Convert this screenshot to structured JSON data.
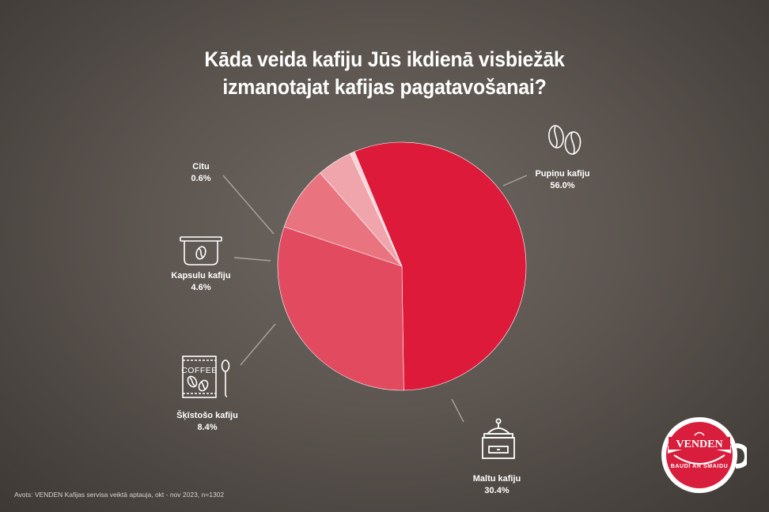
{
  "title_lines": [
    "Kāda veida kafiju Jūs ikdienā visbiežāk",
    "izmanotajat kafijas pagatavošanai?"
  ],
  "chart_data": {
    "type": "pie",
    "title": "Kāda veida kafiju Jūs ikdienā visbiežāk izmanotajat kafijas pagatavošanai?",
    "slices": [
      {
        "label": "Pupiņu kafiju",
        "value": 56.0,
        "value_label": "56.0%",
        "color": "#de1a3b"
      },
      {
        "label": "Maltu kafiju",
        "value": 30.4,
        "value_label": "30.4%",
        "color": "#e24a5f"
      },
      {
        "label": "Šķīstošo kafiju",
        "value": 8.4,
        "value_label": "8.4%",
        "color": "#e9737f"
      },
      {
        "label": "Kapsulu kafiju",
        "value": 4.6,
        "value_label": "4.6%",
        "color": "#f0a5ad"
      },
      {
        "label": "Citu",
        "value": 0.6,
        "value_label": "0.6%",
        "color": "#f7d4d8"
      }
    ],
    "legend": "none"
  },
  "source": "Avots: VENDEN Kafijas servisa veiktā aptauja, okt - nov 2023, n=1302",
  "icon_text": {
    "coffee_packet": "COFFEE"
  },
  "logo": {
    "brand": "VENDEN",
    "slogan": "BAUDĪ AR SMAIDU",
    "color": "#d81e3c"
  }
}
